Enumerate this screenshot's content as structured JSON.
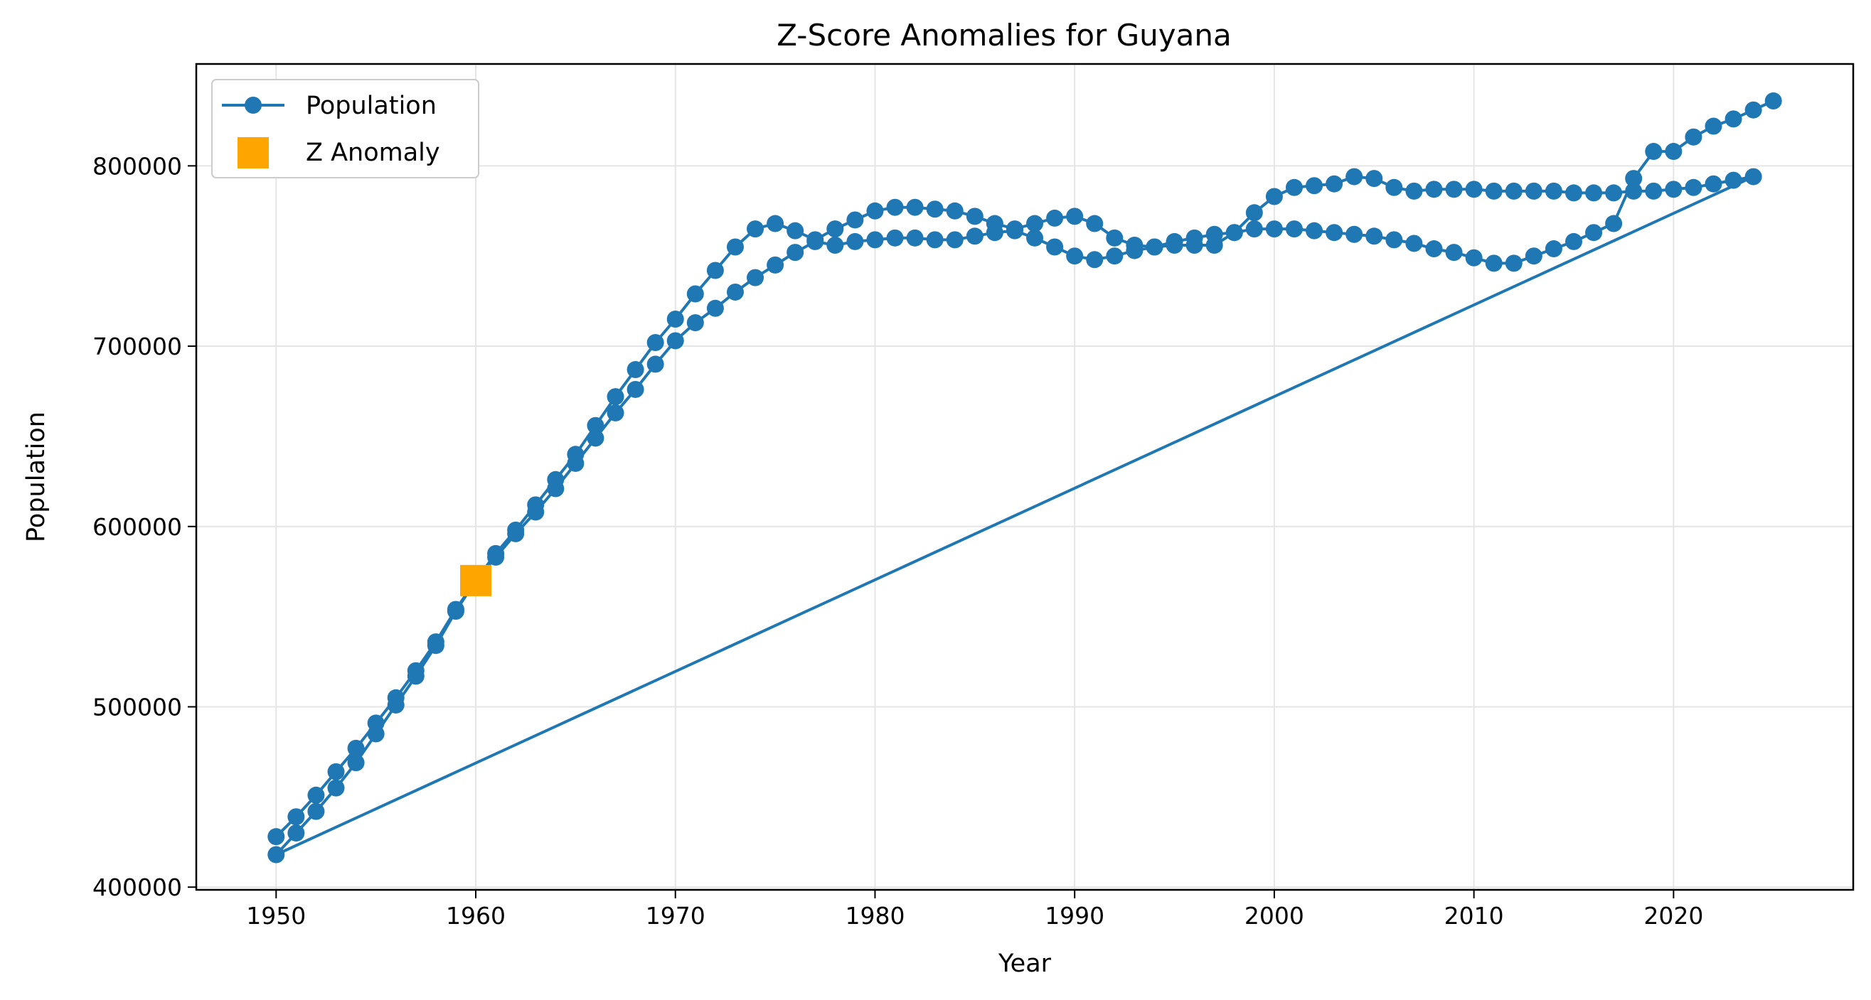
{
  "chart_data": {
    "type": "line",
    "title": "Z-Score Anomalies for Guyana",
    "xlabel": "Year",
    "ylabel": "Population",
    "xlim": [
      1946,
      2029
    ],
    "ylim": [
      398500,
      856500
    ],
    "xticks": [
      1950,
      1960,
      1970,
      1980,
      1990,
      2000,
      2010,
      2020
    ],
    "yticks": [
      400000,
      500000,
      600000,
      700000,
      800000
    ],
    "grid": true,
    "legend_position": "top-left",
    "colors": {
      "line": "#1f77b4",
      "anomaly": "#ffa500",
      "grid": "#e5e5e5"
    },
    "series": [
      {
        "name": "Population",
        "marker": "circle",
        "points": [
          [
            1950,
            428000
          ],
          [
            1951,
            439000
          ],
          [
            1952,
            451000
          ],
          [
            1953,
            464000
          ],
          [
            1954,
            477000
          ],
          [
            1955,
            491000
          ],
          [
            1956,
            505000
          ],
          [
            1957,
            520000
          ],
          [
            1958,
            536000
          ],
          [
            1959,
            554000
          ],
          [
            1960,
            570000
          ],
          [
            1961,
            585000
          ],
          [
            1962,
            598000
          ],
          [
            1963,
            612000
          ],
          [
            1964,
            626000
          ],
          [
            1965,
            640000
          ],
          [
            1966,
            656000
          ],
          [
            1967,
            672000
          ],
          [
            1968,
            687000
          ],
          [
            1969,
            702000
          ],
          [
            1970,
            715000
          ],
          [
            1971,
            729000
          ],
          [
            1972,
            742000
          ],
          [
            1973,
            755000
          ],
          [
            1974,
            765000
          ],
          [
            1975,
            768000
          ],
          [
            1976,
            764000
          ],
          [
            1977,
            759000
          ],
          [
            1978,
            765000
          ],
          [
            1979,
            770000
          ],
          [
            1980,
            775000
          ],
          [
            1981,
            777000
          ],
          [
            1982,
            777000
          ],
          [
            1983,
            776000
          ],
          [
            1984,
            775000
          ],
          [
            1985,
            772000
          ],
          [
            1986,
            768000
          ],
          [
            1987,
            765000
          ],
          [
            1988,
            768000
          ],
          [
            1989,
            771000
          ],
          [
            1990,
            772000
          ],
          [
            1991,
            768000
          ],
          [
            1992,
            760000
          ],
          [
            1993,
            756000
          ],
          [
            1994,
            755000
          ],
          [
            1995,
            758000
          ],
          [
            1996,
            760000
          ],
          [
            1997,
            762000
          ],
          [
            1998,
            763000
          ],
          [
            1999,
            774000
          ],
          [
            2000,
            783000
          ],
          [
            2001,
            788000
          ],
          [
            2002,
            789000
          ],
          [
            2003,
            790000
          ],
          [
            2004,
            794000
          ],
          [
            2005,
            793000
          ],
          [
            2006,
            788000
          ],
          [
            2007,
            786000
          ],
          [
            2008,
            787000
          ],
          [
            2009,
            787000
          ],
          [
            2010,
            787000
          ],
          [
            2011,
            786000
          ],
          [
            2012,
            786000
          ],
          [
            2013,
            786000
          ],
          [
            2014,
            786000
          ],
          [
            2015,
            785000
          ],
          [
            2016,
            785000
          ],
          [
            2017,
            785000
          ],
          [
            2018,
            786000
          ],
          [
            2019,
            786000
          ],
          [
            2020,
            787000
          ],
          [
            2021,
            788000
          ],
          [
            2022,
            790000
          ],
          [
            2023,
            792000
          ],
          [
            2024,
            794000
          ],
          [
            1950,
            418000
          ],
          [
            1951,
            430000
          ],
          [
            1952,
            442000
          ],
          [
            1953,
            455000
          ],
          [
            1954,
            469000
          ],
          [
            1955,
            485000
          ],
          [
            1956,
            501000
          ],
          [
            1957,
            517000
          ],
          [
            1958,
            534000
          ],
          [
            1959,
            553000
          ],
          [
            1960,
            570000
          ],
          [
            1961,
            583000
          ],
          [
            1962,
            596000
          ],
          [
            1963,
            608000
          ],
          [
            1964,
            621000
          ],
          [
            1965,
            635000
          ],
          [
            1966,
            649000
          ],
          [
            1967,
            663000
          ],
          [
            1968,
            676000
          ],
          [
            1969,
            690000
          ],
          [
            1970,
            703000
          ],
          [
            1971,
            713000
          ],
          [
            1972,
            721000
          ],
          [
            1973,
            730000
          ],
          [
            1974,
            738000
          ],
          [
            1975,
            745000
          ],
          [
            1976,
            752000
          ],
          [
            1977,
            758000
          ],
          [
            1978,
            756000
          ],
          [
            1979,
            758000
          ],
          [
            1980,
            759000
          ],
          [
            1981,
            760000
          ],
          [
            1982,
            760000
          ],
          [
            1983,
            759000
          ],
          [
            1984,
            759000
          ],
          [
            1985,
            761000
          ],
          [
            1986,
            763000
          ],
          [
            1987,
            764000
          ],
          [
            1988,
            760000
          ],
          [
            1989,
            755000
          ],
          [
            1990,
            750000
          ],
          [
            1991,
            748000
          ],
          [
            1992,
            750000
          ],
          [
            1993,
            753000
          ],
          [
            1994,
            755000
          ],
          [
            1995,
            756000
          ],
          [
            1996,
            756000
          ],
          [
            1997,
            756000
          ],
          [
            1998,
            763000
          ],
          [
            1999,
            765000
          ],
          [
            2000,
            765000
          ],
          [
            2001,
            765000
          ],
          [
            2002,
            764000
          ],
          [
            2003,
            763000
          ],
          [
            2004,
            762000
          ],
          [
            2005,
            761000
          ],
          [
            2006,
            759000
          ],
          [
            2007,
            757000
          ],
          [
            2008,
            754000
          ],
          [
            2009,
            752000
          ],
          [
            2010,
            749000
          ],
          [
            2011,
            746000
          ],
          [
            2012,
            746000
          ],
          [
            2013,
            750000
          ],
          [
            2014,
            754000
          ],
          [
            2015,
            758000
          ],
          [
            2016,
            763000
          ],
          [
            2017,
            768000
          ],
          [
            2018,
            793000
          ],
          [
            2019,
            808000
          ],
          [
            2020,
            808000
          ],
          [
            2021,
            816000
          ],
          [
            2022,
            822000
          ],
          [
            2023,
            826000
          ],
          [
            2024,
            831000
          ],
          [
            2025,
            836000
          ]
        ]
      },
      {
        "name": "Z Anomaly",
        "marker": "square",
        "points": [
          [
            1960,
            570000
          ]
        ]
      }
    ]
  }
}
